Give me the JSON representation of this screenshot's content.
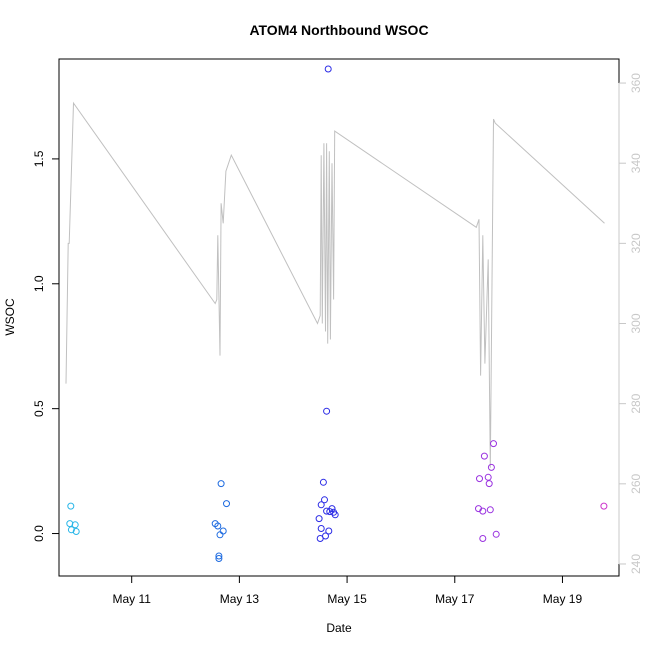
{
  "chart_data": {
    "type": "scatter",
    "title": "ATOM4 Northbound WSOC",
    "xlabel": "Date",
    "ylabel": "WSOC",
    "x_unit": "day of May",
    "xlim": [
      9.65,
      20.05
    ],
    "ylim": [
      -0.17,
      1.9
    ],
    "y2lim": [
      237,
      366
    ],
    "x_ticks": [
      {
        "value": 11,
        "label": "May 11"
      },
      {
        "value": 13,
        "label": "May 13"
      },
      {
        "value": 15,
        "label": "May 15"
      },
      {
        "value": 17,
        "label": "May 17"
      },
      {
        "value": 19,
        "label": "May 19"
      }
    ],
    "y_ticks": [
      {
        "value": 0.0,
        "label": "0.0"
      },
      {
        "value": 0.5,
        "label": "0.5"
      },
      {
        "value": 1.0,
        "label": "1.0"
      },
      {
        "value": 1.5,
        "label": "1.5"
      }
    ],
    "y2_ticks": [
      {
        "value": 240,
        "label": "240"
      },
      {
        "value": 260,
        "label": "260"
      },
      {
        "value": 280,
        "label": "280"
      },
      {
        "value": 300,
        "label": "300"
      },
      {
        "value": 320,
        "label": "320"
      },
      {
        "value": 340,
        "label": "340"
      },
      {
        "value": 360,
        "label": "360"
      }
    ],
    "grid": false,
    "legend": "none",
    "line_color": "#c0c0c0",
    "points": [
      {
        "x": 9.87,
        "y": 0.11,
        "color": "#29b6e8"
      },
      {
        "x": 9.85,
        "y": 0.04,
        "color": "#29b6e8"
      },
      {
        "x": 9.95,
        "y": 0.035,
        "color": "#29b6e8"
      },
      {
        "x": 9.88,
        "y": 0.015,
        "color": "#29b6e8"
      },
      {
        "x": 9.97,
        "y": 0.008,
        "color": "#29b6e8"
      },
      {
        "x": 12.55,
        "y": 0.04,
        "color": "#1e6be0"
      },
      {
        "x": 12.6,
        "y": 0.03,
        "color": "#1e6be0"
      },
      {
        "x": 12.66,
        "y": 0.2,
        "color": "#1e6be0"
      },
      {
        "x": 12.76,
        "y": 0.12,
        "color": "#1e6be0"
      },
      {
        "x": 12.7,
        "y": 0.01,
        "color": "#1e6be0"
      },
      {
        "x": 12.64,
        "y": -0.005,
        "color": "#1e6be0"
      },
      {
        "x": 12.62,
        "y": -0.09,
        "color": "#1e6be0"
      },
      {
        "x": 12.62,
        "y": -0.1,
        "color": "#1e6be0"
      },
      {
        "x": 14.65,
        "y": 1.86,
        "color": "#2c2ce6"
      },
      {
        "x": 14.62,
        "y": 0.49,
        "color": "#2c2ce6"
      },
      {
        "x": 14.56,
        "y": 0.205,
        "color": "#2c2ce6"
      },
      {
        "x": 14.58,
        "y": 0.135,
        "color": "#2c2ce6"
      },
      {
        "x": 14.52,
        "y": 0.115,
        "color": "#2c2ce6"
      },
      {
        "x": 14.72,
        "y": 0.1,
        "color": "#2c2ce6"
      },
      {
        "x": 14.62,
        "y": 0.09,
        "color": "#2c2ce6"
      },
      {
        "x": 14.68,
        "y": 0.088,
        "color": "#2c2ce6"
      },
      {
        "x": 14.75,
        "y": 0.085,
        "color": "#2c2ce6"
      },
      {
        "x": 14.78,
        "y": 0.075,
        "color": "#2c2ce6"
      },
      {
        "x": 14.48,
        "y": 0.06,
        "color": "#2c2ce6"
      },
      {
        "x": 14.52,
        "y": 0.02,
        "color": "#2c2ce6"
      },
      {
        "x": 14.66,
        "y": 0.01,
        "color": "#2c2ce6"
      },
      {
        "x": 14.6,
        "y": -0.01,
        "color": "#2c2ce6"
      },
      {
        "x": 14.5,
        "y": -0.02,
        "color": "#2c2ce6"
      },
      {
        "x": 17.72,
        "y": 0.36,
        "color": "#9a33e0"
      },
      {
        "x": 17.55,
        "y": 0.31,
        "color": "#9a33e0"
      },
      {
        "x": 17.68,
        "y": 0.265,
        "color": "#9a33e0"
      },
      {
        "x": 17.62,
        "y": 0.225,
        "color": "#9a33e0"
      },
      {
        "x": 17.46,
        "y": 0.22,
        "color": "#9a33e0"
      },
      {
        "x": 17.64,
        "y": 0.2,
        "color": "#9a33e0"
      },
      {
        "x": 17.44,
        "y": 0.1,
        "color": "#9a33e0"
      },
      {
        "x": 17.66,
        "y": 0.095,
        "color": "#9a33e0"
      },
      {
        "x": 17.52,
        "y": 0.09,
        "color": "#9a33e0"
      },
      {
        "x": 17.77,
        "y": -0.003,
        "color": "#9a33e0"
      },
      {
        "x": 17.52,
        "y": -0.02,
        "color": "#9a33e0"
      },
      {
        "x": 19.77,
        "y": 0.11,
        "color": "#cc33cc"
      }
    ],
    "line": [
      {
        "x": 9.78,
        "y2": 285
      },
      {
        "x": 9.82,
        "y2": 320
      },
      {
        "x": 9.84,
        "y2": 320
      },
      {
        "x": 9.92,
        "y2": 355
      },
      {
        "x": 12.55,
        "y2": 305
      },
      {
        "x": 12.58,
        "y2": 306
      },
      {
        "x": 12.6,
        "y2": 322
      },
      {
        "x": 12.64,
        "y2": 292
      },
      {
        "x": 12.66,
        "y2": 330
      },
      {
        "x": 12.7,
        "y2": 325
      },
      {
        "x": 12.75,
        "y2": 338
      },
      {
        "x": 12.85,
        "y2": 342
      },
      {
        "x": 14.45,
        "y2": 300
      },
      {
        "x": 14.5,
        "y2": 302
      },
      {
        "x": 14.52,
        "y2": 342
      },
      {
        "x": 14.54,
        "y2": 300
      },
      {
        "x": 14.57,
        "y2": 345
      },
      {
        "x": 14.6,
        "y2": 298
      },
      {
        "x": 14.62,
        "y2": 345
      },
      {
        "x": 14.64,
        "y2": 295
      },
      {
        "x": 14.67,
        "y2": 343
      },
      {
        "x": 14.69,
        "y2": 296
      },
      {
        "x": 14.72,
        "y2": 340
      },
      {
        "x": 14.75,
        "y2": 306
      },
      {
        "x": 14.77,
        "y2": 348
      },
      {
        "x": 17.4,
        "y2": 324
      },
      {
        "x": 17.45,
        "y2": 326
      },
      {
        "x": 17.48,
        "y2": 287
      },
      {
        "x": 17.52,
        "y2": 322
      },
      {
        "x": 17.56,
        "y2": 290
      },
      {
        "x": 17.62,
        "y2": 316
      },
      {
        "x": 17.66,
        "y2": 264
      },
      {
        "x": 17.72,
        "y2": 351
      },
      {
        "x": 17.75,
        "y2": 350
      },
      {
        "x": 19.78,
        "y2": 325
      }
    ]
  }
}
